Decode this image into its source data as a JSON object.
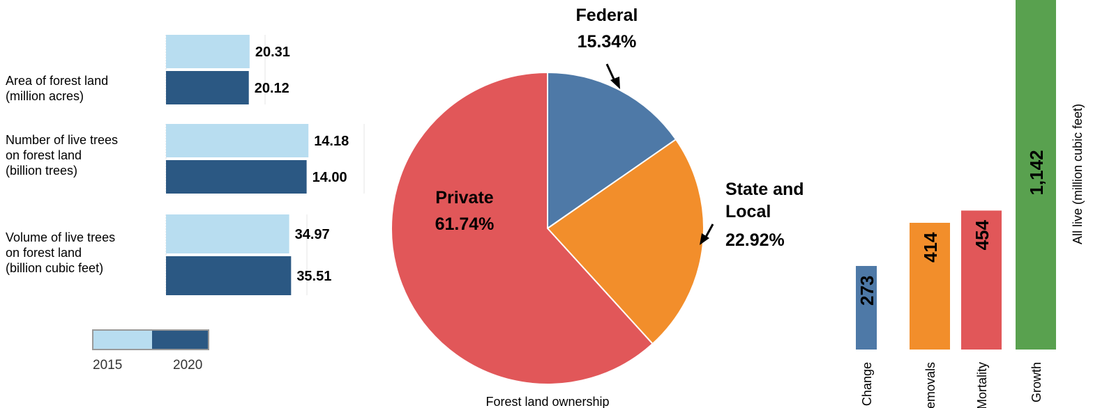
{
  "chart_data": [
    {
      "type": "bar",
      "orientation": "horizontal",
      "categories": [
        "Area of forest land\n(million acres)",
        "Number of live trees\non forest land\n(billion trees)",
        "Volume of live trees\non forest land\n(billion cubic feet)"
      ],
      "series": [
        {
          "name": "2015",
          "values": [
            20.31,
            14.18,
            34.97
          ],
          "value_labels": [
            "20.31",
            "14.18",
            "34.97"
          ],
          "color": "#b8ddf0"
        },
        {
          "name": "2020",
          "values": [
            20.12,
            14.0,
            35.51
          ],
          "value_labels": [
            "20.12",
            "14.00",
            "35.51"
          ],
          "color": "#2b5883"
        }
      ],
      "legend": {
        "placement": "bottom",
        "entries": [
          "2015",
          "2020"
        ]
      },
      "grid": false
    },
    {
      "type": "pie",
      "title": "Forest land ownership",
      "slices": [
        {
          "label": "Federal",
          "value": 15.34,
          "value_label": "15.34%",
          "color": "#4e79a7"
        },
        {
          "label": "State and\nLocal",
          "value": 22.92,
          "value_label": "22.92%",
          "color": "#f28e2b"
        },
        {
          "label": "Private",
          "value": 61.74,
          "value_label": "61.74%",
          "color": "#e15759"
        }
      ]
    },
    {
      "type": "bar",
      "orientation": "vertical",
      "ylabel": "All live (million cubic feet)",
      "categories": [
        "Change",
        "Removals",
        "Mortality",
        "Growth"
      ],
      "values": [
        273,
        414,
        454,
        1142
      ],
      "value_labels": [
        "273",
        "414",
        "454",
        "1,142"
      ],
      "colors": [
        "#4e79a7",
        "#f28e2b",
        "#e15759",
        "#59a14f"
      ],
      "grid": false
    }
  ]
}
